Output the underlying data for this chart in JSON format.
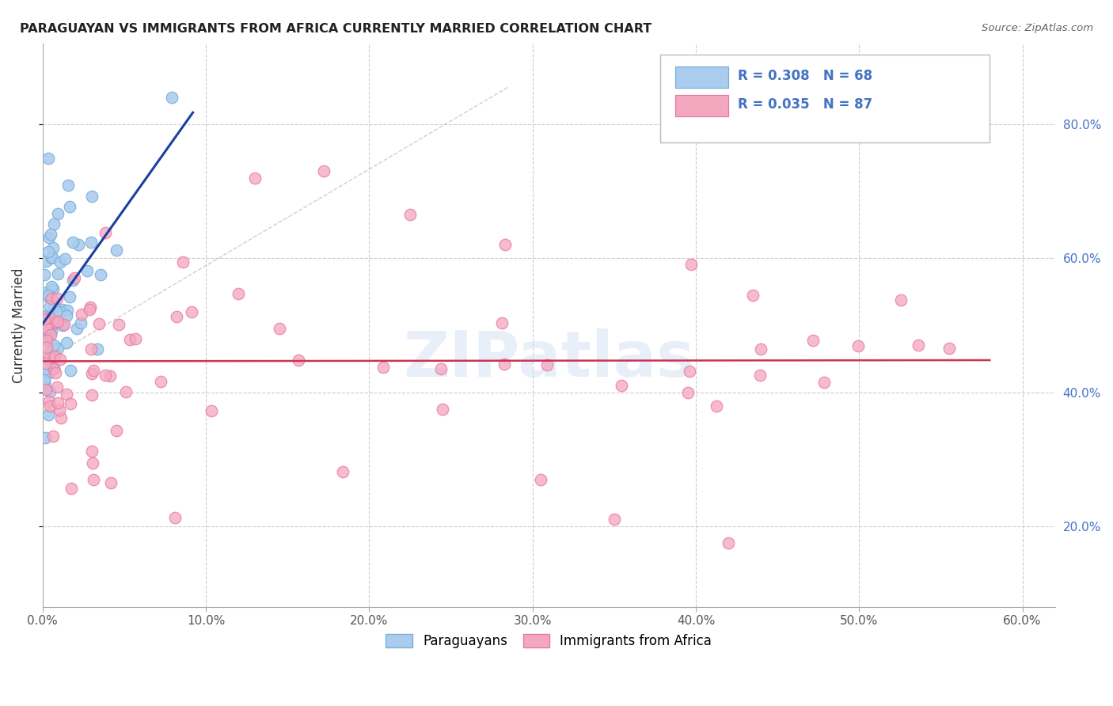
{
  "title": "PARAGUAYAN VS IMMIGRANTS FROM AFRICA CURRENTLY MARRIED CORRELATION CHART",
  "source": "Source: ZipAtlas.com",
  "ylabel": "Currently Married",
  "xlim": [
    0.0,
    0.62
  ],
  "ylim": [
    0.08,
    0.92
  ],
  "blue_color": "#7ab0d8",
  "blue_fill": "#aaccee",
  "pink_color": "#e878a0",
  "pink_fill": "#f4a8c0",
  "blue_line_color": "#1a3fa0",
  "pink_line_color": "#cc3355",
  "legend_label1_r": "0.308",
  "legend_label1_n": "68",
  "legend_label2_r": "0.035",
  "legend_label2_n": "87",
  "watermark": "ZIPatlas",
  "right_ytick_color": "#4472c4",
  "grid_color": "#cccccc",
  "xticks": [
    0.0,
    0.1,
    0.2,
    0.3,
    0.4,
    0.5,
    0.6
  ],
  "xticklabels": [
    "0.0%",
    "10.0%",
    "20.0%",
    "30.0%",
    "40.0%",
    "50.0%",
    "60.0%"
  ],
  "yticks": [
    0.2,
    0.4,
    0.6,
    0.8
  ],
  "yticklabels": [
    "20.0%",
    "40.0%",
    "60.0%",
    "80.0%"
  ],
  "blue_seed": 77,
  "pink_seed": 201
}
